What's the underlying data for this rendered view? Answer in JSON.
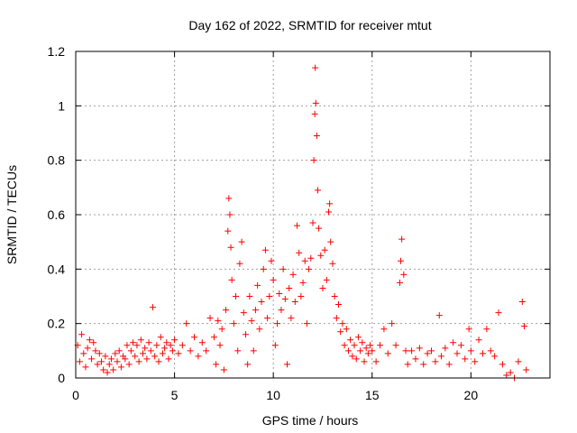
{
  "chart_data": {
    "type": "scatter",
    "title": "Day 162 of 2022, SRMTID for receiver mtut",
    "xlabel": "GPS time / hours",
    "ylabel": "SRMTID / TECUs",
    "xlim": [
      0,
      24
    ],
    "ylim": [
      0,
      1.2
    ],
    "xticks": [
      0,
      5,
      10,
      15,
      20
    ],
    "xtick_labels": [
      "0",
      "5",
      "10",
      "15",
      "20"
    ],
    "yticks": [
      0,
      0.2,
      0.4,
      0.6,
      0.8,
      1,
      1.2
    ],
    "ytick_labels": [
      "0",
      "0.2",
      "0.4",
      "0.6",
      "0.8",
      "1",
      "1.2"
    ],
    "grid": true,
    "marker": "+",
    "colors": {
      "points": "#ff0000",
      "axes": "#000000",
      "grid": "#a0a0a0"
    },
    "series": [
      {
        "name": "SRMTID",
        "points": [
          [
            0.1,
            0.12
          ],
          [
            0.2,
            0.06
          ],
          [
            0.3,
            0.16
          ],
          [
            0.4,
            0.09
          ],
          [
            0.5,
            0.04
          ],
          [
            0.6,
            0.11
          ],
          [
            0.7,
            0.14
          ],
          [
            0.8,
            0.07
          ],
          [
            0.9,
            0.13
          ],
          [
            1.0,
            0.1
          ],
          [
            1.1,
            0.05
          ],
          [
            1.2,
            0.09
          ],
          [
            1.3,
            0.06
          ],
          [
            1.4,
            0.03
          ],
          [
            1.5,
            0.08
          ],
          [
            1.6,
            0.02
          ],
          [
            1.7,
            0.05
          ],
          [
            1.8,
            0.07
          ],
          [
            1.9,
            0.03
          ],
          [
            2.0,
            0.09
          ],
          [
            2.1,
            0.06
          ],
          [
            2.2,
            0.1
          ],
          [
            2.3,
            0.04
          ],
          [
            2.4,
            0.08
          ],
          [
            2.5,
            0.07
          ],
          [
            2.6,
            0.12
          ],
          [
            2.7,
            0.05
          ],
          [
            2.8,
            0.1
          ],
          [
            2.9,
            0.13
          ],
          [
            3.0,
            0.08
          ],
          [
            3.1,
            0.12
          ],
          [
            3.2,
            0.06
          ],
          [
            3.3,
            0.14
          ],
          [
            3.4,
            0.09
          ],
          [
            3.5,
            0.11
          ],
          [
            3.6,
            0.07
          ],
          [
            3.7,
            0.13
          ],
          [
            3.8,
            0.1
          ],
          [
            3.9,
            0.26
          ],
          [
            4.0,
            0.08
          ],
          [
            4.1,
            0.12
          ],
          [
            4.2,
            0.06
          ],
          [
            4.3,
            0.15
          ],
          [
            4.4,
            0.09
          ],
          [
            4.5,
            0.11
          ],
          [
            4.6,
            0.13
          ],
          [
            4.7,
            0.07
          ],
          [
            4.8,
            0.12
          ],
          [
            4.9,
            0.1
          ],
          [
            5.0,
            0.14
          ],
          [
            5.2,
            0.09
          ],
          [
            5.4,
            0.12
          ],
          [
            5.6,
            0.2
          ],
          [
            5.8,
            0.1
          ],
          [
            6.0,
            0.15
          ],
          [
            6.2,
            0.08
          ],
          [
            6.4,
            0.13
          ],
          [
            6.6,
            0.1
          ],
          [
            6.8,
            0.22
          ],
          [
            7.0,
            0.15
          ],
          [
            7.1,
            0.05
          ],
          [
            7.2,
            0.21
          ],
          [
            7.3,
            0.12
          ],
          [
            7.4,
            0.18
          ],
          [
            7.5,
            0.03
          ],
          [
            7.6,
            0.25
          ],
          [
            7.7,
            0.54
          ],
          [
            7.75,
            0.66
          ],
          [
            7.8,
            0.6
          ],
          [
            7.85,
            0.48
          ],
          [
            7.9,
            0.36
          ],
          [
            8.0,
            0.2
          ],
          [
            8.1,
            0.3
          ],
          [
            8.2,
            0.1
          ],
          [
            8.3,
            0.42
          ],
          [
            8.4,
            0.5
          ],
          [
            8.5,
            0.24
          ],
          [
            8.6,
            0.16
          ],
          [
            8.7,
            0.05
          ],
          [
            8.8,
            0.3
          ],
          [
            8.9,
            0.21
          ],
          [
            9.0,
            0.1
          ],
          [
            9.1,
            0.25
          ],
          [
            9.2,
            0.34
          ],
          [
            9.3,
            0.18
          ],
          [
            9.4,
            0.28
          ],
          [
            9.5,
            0.4
          ],
          [
            9.6,
            0.47
          ],
          [
            9.7,
            0.22
          ],
          [
            9.8,
            0.3
          ],
          [
            9.9,
            0.43
          ],
          [
            10.0,
            0.36
          ],
          [
            10.1,
            0.12
          ],
          [
            10.2,
            0.2
          ],
          [
            10.3,
            0.31
          ],
          [
            10.4,
            0.25
          ],
          [
            10.5,
            0.4
          ],
          [
            10.6,
            0.29
          ],
          [
            10.7,
            0.05
          ],
          [
            10.8,
            0.33
          ],
          [
            10.9,
            0.22
          ],
          [
            11.0,
            0.38
          ],
          [
            11.1,
            0.28
          ],
          [
            11.2,
            0.56
          ],
          [
            11.3,
            0.46
          ],
          [
            11.4,
            0.3
          ],
          [
            11.5,
            0.35
          ],
          [
            11.6,
            0.43
          ],
          [
            11.7,
            0.2
          ],
          [
            11.8,
            0.4
          ],
          [
            11.9,
            0.44
          ],
          [
            12.0,
            0.57
          ],
          [
            12.05,
            0.8
          ],
          [
            12.1,
            0.97
          ],
          [
            12.12,
            1.14
          ],
          [
            12.15,
            1.01
          ],
          [
            12.2,
            0.89
          ],
          [
            12.25,
            0.69
          ],
          [
            12.3,
            0.55
          ],
          [
            12.4,
            0.45
          ],
          [
            12.5,
            0.33
          ],
          [
            12.6,
            0.47
          ],
          [
            12.7,
            0.36
          ],
          [
            12.8,
            0.61
          ],
          [
            12.85,
            0.64
          ],
          [
            12.9,
            0.5
          ],
          [
            13.0,
            0.42
          ],
          [
            13.1,
            0.3
          ],
          [
            13.2,
            0.22
          ],
          [
            13.3,
            0.27
          ],
          [
            13.4,
            0.17
          ],
          [
            13.5,
            0.2
          ],
          [
            13.6,
            0.12
          ],
          [
            13.7,
            0.18
          ],
          [
            13.8,
            0.1
          ],
          [
            13.9,
            0.14
          ],
          [
            14.0,
            0.08
          ],
          [
            14.1,
            0.12
          ],
          [
            14.2,
            0.07
          ],
          [
            14.3,
            0.15
          ],
          [
            14.4,
            0.1
          ],
          [
            14.5,
            0.13
          ],
          [
            14.6,
            0.06
          ],
          [
            14.7,
            0.11
          ],
          [
            14.8,
            0.09
          ],
          [
            14.9,
            0.12
          ],
          [
            15.0,
            0.1
          ],
          [
            15.2,
            0.06
          ],
          [
            15.4,
            0.12
          ],
          [
            15.6,
            0.18
          ],
          [
            15.8,
            0.09
          ],
          [
            16.0,
            0.2
          ],
          [
            16.2,
            0.12
          ],
          [
            16.4,
            0.35
          ],
          [
            16.45,
            0.43
          ],
          [
            16.5,
            0.51
          ],
          [
            16.6,
            0.38
          ],
          [
            16.7,
            0.1
          ],
          [
            16.8,
            0.05
          ],
          [
            17.0,
            0.1
          ],
          [
            17.2,
            0.07
          ],
          [
            17.4,
            0.11
          ],
          [
            17.6,
            0.05
          ],
          [
            17.8,
            0.09
          ],
          [
            18.0,
            0.1
          ],
          [
            18.2,
            0.06
          ],
          [
            18.4,
            0.23
          ],
          [
            18.5,
            0.08
          ],
          [
            18.7,
            0.11
          ],
          [
            18.9,
            0.05
          ],
          [
            19.1,
            0.13
          ],
          [
            19.3,
            0.09
          ],
          [
            19.5,
            0.12
          ],
          [
            19.7,
            0.07
          ],
          [
            19.9,
            0.18
          ],
          [
            20.0,
            0.1
          ],
          [
            20.2,
            0.06
          ],
          [
            20.4,
            0.14
          ],
          [
            20.6,
            0.09
          ],
          [
            20.8,
            0.18
          ],
          [
            21.0,
            0.1
          ],
          [
            21.2,
            0.08
          ],
          [
            21.4,
            0.24
          ],
          [
            21.6,
            0.05
          ],
          [
            21.8,
            0.01
          ],
          [
            22.0,
            0.02
          ],
          [
            22.2,
            0.0
          ],
          [
            22.4,
            0.06
          ],
          [
            22.6,
            0.28
          ],
          [
            22.7,
            0.19
          ],
          [
            22.8,
            0.03
          ]
        ]
      }
    ]
  }
}
